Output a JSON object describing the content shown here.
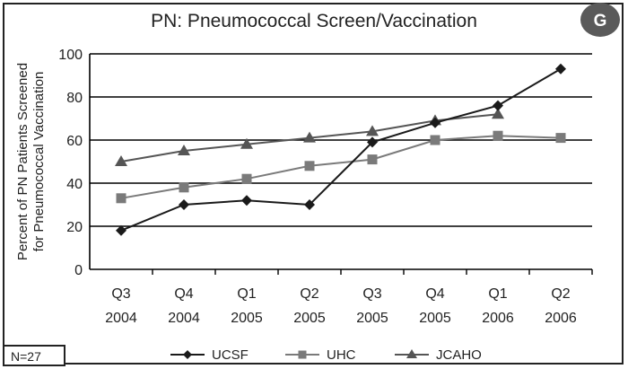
{
  "badge": "G",
  "note": "N=27",
  "colors": {
    "ucsf": "#1a1a1a",
    "uhc": "#7a7a7a",
    "jcaho": "#555555",
    "grid": "#000000"
  },
  "chart_data": {
    "type": "line",
    "title": "PN: Pneumococcal Screen/Vaccination",
    "xlabel": "",
    "ylabel": "Percent of PN Patients Screened for Pneumococcal Vaccination",
    "ylim": [
      0,
      100
    ],
    "yticks": [
      0,
      20,
      40,
      60,
      80,
      100
    ],
    "categories": [
      [
        "Q3",
        "2004"
      ],
      [
        "Q4",
        "2004"
      ],
      [
        "Q1",
        "2005"
      ],
      [
        "Q2",
        "2005"
      ],
      [
        "Q3",
        "2005"
      ],
      [
        "Q4",
        "2005"
      ],
      [
        "Q1",
        "2006"
      ],
      [
        "Q2",
        "2006"
      ]
    ],
    "grid": true,
    "legend": "bottom",
    "series": [
      {
        "name": "UCSF",
        "marker": "diamond",
        "values": [
          18,
          30,
          32,
          30,
          59,
          68,
          76,
          93
        ]
      },
      {
        "name": "UHC",
        "marker": "square",
        "values": [
          33,
          38,
          42,
          48,
          51,
          60,
          62,
          61
        ]
      },
      {
        "name": "JCAHO",
        "marker": "triangle",
        "values": [
          50,
          55,
          58,
          61,
          64,
          69,
          72,
          null
        ]
      }
    ]
  }
}
